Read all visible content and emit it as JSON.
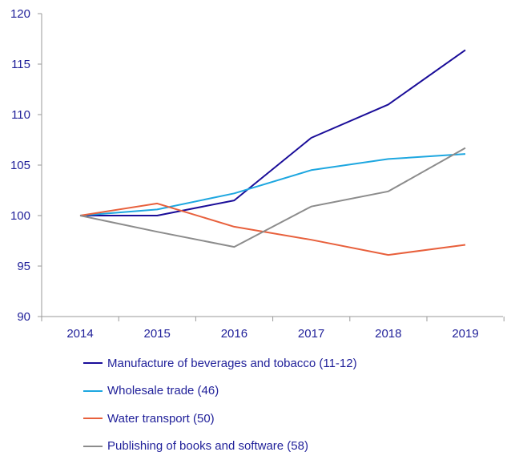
{
  "chart_data": {
    "type": "line",
    "title": "",
    "xlabel": "",
    "ylabel": "",
    "categories": [
      "2014",
      "2015",
      "2016",
      "2017",
      "2018",
      "2019"
    ],
    "ylim": [
      90,
      120
    ],
    "yticks": [
      90,
      95,
      100,
      105,
      110,
      115,
      120
    ],
    "grid": false,
    "legend_position": "bottom",
    "series": [
      {
        "name": "Manufacture of beverages and tobacco (11-12)",
        "color": "#1a0d99",
        "values": [
          100,
          100,
          101.5,
          107.7,
          111.0,
          116.4
        ]
      },
      {
        "name": "Wholesale trade (46)",
        "color": "#1ea7e0",
        "values": [
          100,
          100.6,
          102.2,
          104.5,
          105.6,
          106.1
        ]
      },
      {
        "name": "Water transport (50)",
        "color": "#e8603c",
        "values": [
          100,
          101.2,
          98.9,
          97.6,
          96.1,
          97.1
        ]
      },
      {
        "name": "Publishing of books and software (58)",
        "color": "#8c8c8c",
        "values": [
          100,
          98.4,
          96.9,
          100.9,
          102.4,
          106.7
        ]
      }
    ]
  }
}
